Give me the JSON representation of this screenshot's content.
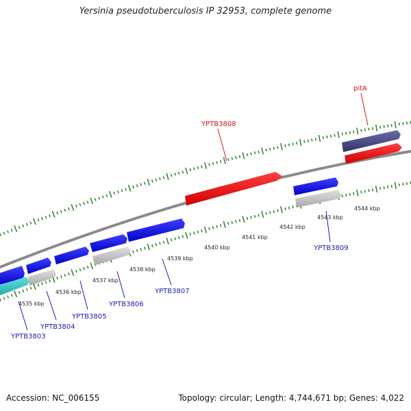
{
  "title": "Yersinia pseudotuberculosis IP 32953, complete genome",
  "footer": {
    "accession": "Accession: NC_006155",
    "summary": "Topology: circular; Length: 4,744,671 bp; Genes: 4,022"
  },
  "colors": {
    "backbone": "#8a8a8a",
    "tick": "#2f8a2f",
    "forward_gene": "#1010ee",
    "reverse_gene": "#1010ee",
    "rna_gene": "#ee1111",
    "pseudo_gene": "#bfbfbf",
    "cyan_gene": "#2ec8c8",
    "purple_gene": "#4a4a8a",
    "label_blue": "#1a1ab0",
    "label_red": "#dd1111"
  },
  "scale_ticks": [
    {
      "label": "4535 kbp"
    },
    {
      "label": "4536 kbp"
    },
    {
      "label": "4537 kbp"
    },
    {
      "label": "4538 kbp"
    },
    {
      "label": "4539 kbp"
    },
    {
      "label": "4540 kbp"
    },
    {
      "label": "4541 kbp"
    },
    {
      "label": "4542 kbp"
    },
    {
      "label": "4543 kbp"
    },
    {
      "label": "4544 kbp"
    }
  ],
  "gene_labels": [
    {
      "id": "YPTB3803",
      "color": "label_blue"
    },
    {
      "id": "YPTB3804",
      "color": "label_blue"
    },
    {
      "id": "YPTB3805",
      "color": "label_blue"
    },
    {
      "id": "YPTB3806",
      "color": "label_blue"
    },
    {
      "id": "YPTB3807",
      "color": "label_blue"
    },
    {
      "id": "YPTB3808",
      "color": "label_red"
    },
    {
      "id": "YPTB3809",
      "color": "label_blue"
    },
    {
      "id": "pitA",
      "color": "label_red"
    }
  ]
}
